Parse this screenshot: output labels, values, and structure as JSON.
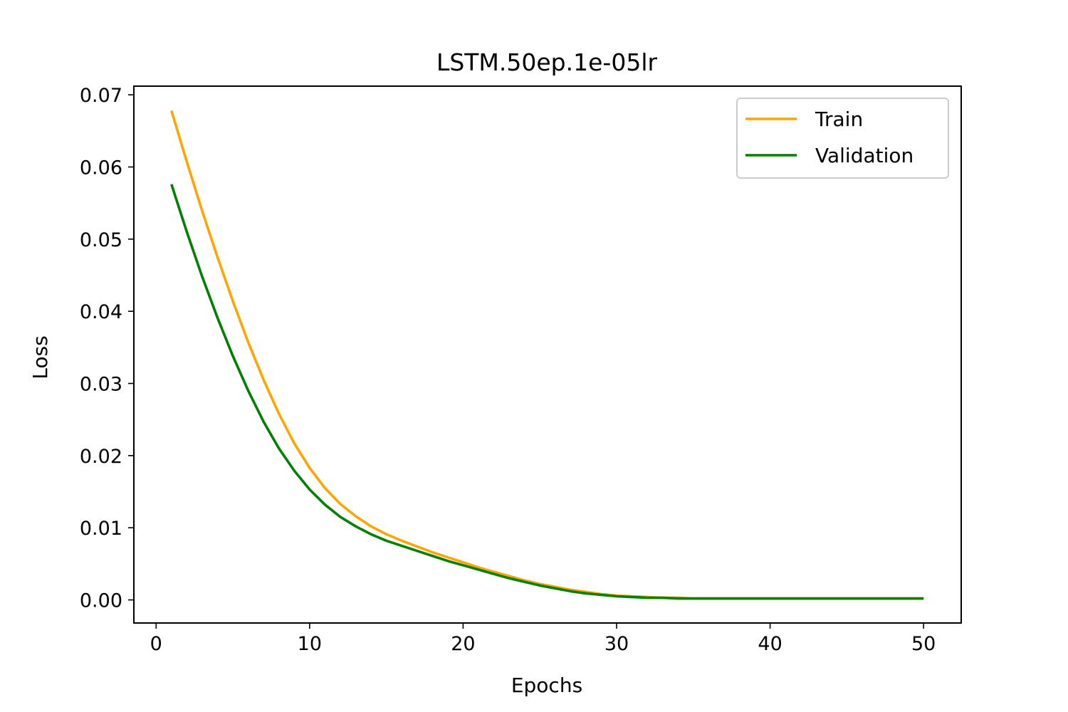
{
  "chart_data": {
    "type": "line",
    "title": "LSTM.50ep.1e-05lr",
    "xlabel": "Epochs",
    "ylabel": "Loss",
    "xlim": [
      -1.45,
      52.45
    ],
    "ylim": [
      -0.0032,
      0.0712
    ],
    "xticks": [
      0,
      10,
      20,
      30,
      40,
      50
    ],
    "xtick_labels": [
      "0",
      "10",
      "20",
      "30",
      "40",
      "50"
    ],
    "yticks": [
      0.0,
      0.01,
      0.02,
      0.03,
      0.04,
      0.05,
      0.06,
      0.07
    ],
    "ytick_labels": [
      "0.00",
      "0.01",
      "0.02",
      "0.03",
      "0.04",
      "0.05",
      "0.06",
      "0.07"
    ],
    "grid": false,
    "legend_position": "top-right",
    "x": [
      1,
      2,
      3,
      4,
      5,
      6,
      7,
      8,
      9,
      10,
      11,
      12,
      13,
      14,
      15,
      16,
      17,
      18,
      19,
      20,
      21,
      22,
      23,
      24,
      25,
      26,
      27,
      28,
      29,
      30,
      31,
      32,
      33,
      34,
      35,
      36,
      37,
      38,
      39,
      40,
      41,
      42,
      43,
      44,
      45,
      46,
      47,
      48,
      49,
      50
    ],
    "series": [
      {
        "name": "Train",
        "color": "#ffa500",
        "values": [
          0.0678,
          0.0607,
          0.0539,
          0.0475,
          0.0414,
          0.0357,
          0.0305,
          0.0258,
          0.0217,
          0.0183,
          0.0155,
          0.0133,
          0.0116,
          0.0102,
          0.0091,
          0.0082,
          0.0074,
          0.0066,
          0.0059,
          0.0052,
          0.0045,
          0.0039,
          0.0033,
          0.0027,
          0.0022,
          0.0018,
          0.0014,
          0.0011,
          0.0008,
          0.0006,
          0.0005,
          0.0004,
          0.0003,
          0.0003,
          0.0002,
          0.0002,
          0.0002,
          0.0002,
          0.0002,
          0.0002,
          0.0002,
          0.0002,
          0.0002,
          0.0002,
          0.0002,
          0.0002,
          0.0002,
          0.0002,
          0.0002,
          0.0002
        ]
      },
      {
        "name": "Validation",
        "color": "#008000",
        "values": [
          0.0576,
          0.051,
          0.0448,
          0.0391,
          0.0338,
          0.029,
          0.0247,
          0.021,
          0.0179,
          0.0153,
          0.0132,
          0.0115,
          0.0102,
          0.0091,
          0.0082,
          0.0075,
          0.0068,
          0.0061,
          0.0054,
          0.0048,
          0.0042,
          0.0036,
          0.003,
          0.0025,
          0.002,
          0.0016,
          0.0012,
          0.0009,
          0.0007,
          0.0005,
          0.0004,
          0.0003,
          0.0003,
          0.0002,
          0.0002,
          0.0002,
          0.0002,
          0.0002,
          0.0002,
          0.0002,
          0.0002,
          0.0002,
          0.0002,
          0.0002,
          0.0002,
          0.0002,
          0.0002,
          0.0002,
          0.0002,
          0.0002
        ]
      }
    ]
  }
}
